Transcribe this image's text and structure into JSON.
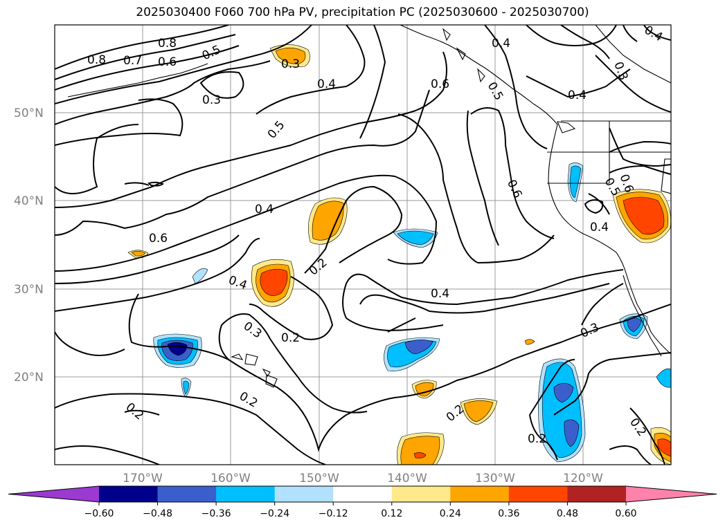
{
  "title": "2025030400 F060 700 hPa PV, precipitation PC (2025030600 - 2025030700)",
  "map": {
    "lat_labels": [
      "50°N",
      "40°N",
      "30°N",
      "20°N"
    ],
    "lon_labels": [
      "170°W",
      "160°W",
      "150°W",
      "140°W",
      "130°W",
      "120°W"
    ],
    "contour_labels": [
      "0.8",
      "0.7",
      "0.6",
      "0.5",
      "0.8",
      "0.3",
      "0.3",
      "0.4",
      "0.6",
      "0.4",
      "0.5",
      "0.4",
      "0.3",
      "0.4",
      "0.5",
      "0.6",
      "0.4",
      "0.6",
      "0.5",
      "0.6",
      "0.4",
      "0.2",
      "0.4",
      "0.3",
      "0.2",
      "0.4",
      "0.3",
      "0.2",
      "0.2",
      "0.2",
      "0.2",
      "0.2"
    ]
  },
  "colorbar": {
    "ticks": [
      "−0.60",
      "−0.48",
      "−0.36",
      "−0.24",
      "−0.12",
      "0.12",
      "0.24",
      "0.36",
      "0.48",
      "0.60"
    ],
    "colors": [
      "#9a3ad0",
      "#00008b",
      "#3a5fcd",
      "#00bfff",
      "#b0e2ff",
      "#ffffff",
      "#ffe98a",
      "#ffa500",
      "#ff4500",
      "#b22222",
      "#ff82ab"
    ]
  }
}
